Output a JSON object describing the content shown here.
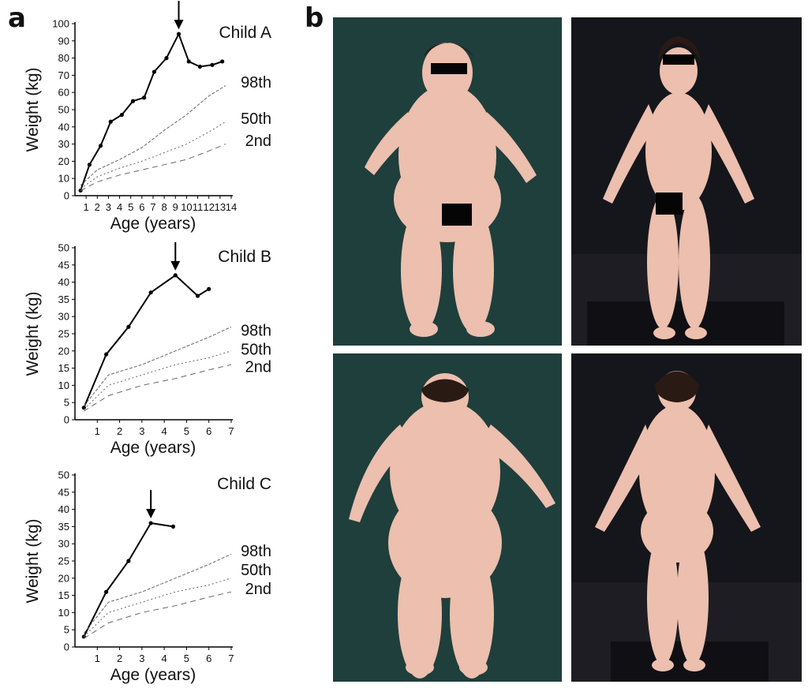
{
  "panel_labels": {
    "a": "a",
    "b": "b"
  },
  "colors": {
    "photo_background": "#1f3f3c",
    "photo_background_right": "#15161c",
    "skin": "#ecbfae",
    "hair": "#2a1a14",
    "censor": "#050505"
  },
  "chart_data": [
    {
      "type": "line",
      "title": "Child A",
      "xlabel": "Age (years)",
      "ylabel": "Weight (kg)",
      "xlim": [
        0,
        14
      ],
      "ylim": [
        0,
        100
      ],
      "xticks": [
        1,
        2,
        3,
        4,
        5,
        6,
        7,
        8,
        9,
        10,
        11,
        12,
        13,
        14
      ],
      "yticks": [
        0,
        10,
        20,
        30,
        40,
        50,
        60,
        70,
        80,
        90,
        100
      ],
      "arrow_at_x": 9.5,
      "series": [
        {
          "x": [
            0.5,
            1.3,
            2.3,
            3.2,
            4.2,
            5.2,
            6.2,
            7.1,
            8.2,
            9.3,
            10.2,
            11.2,
            12.3,
            13.2
          ],
          "y": [
            3,
            18,
            29,
            43,
            47,
            55,
            57,
            72,
            80,
            94,
            78,
            75,
            76,
            78
          ]
        },
        {
          "name": "98th",
          "label_y": 66,
          "x": [
            0.5,
            2,
            4,
            6,
            8,
            10,
            12,
            13.5
          ],
          "y": [
            6,
            15,
            21,
            28,
            38,
            47,
            58,
            64
          ]
        },
        {
          "name": "50th",
          "label_y": 45,
          "x": [
            0.5,
            2,
            4,
            6,
            8,
            10,
            12,
            13.5
          ],
          "y": [
            4,
            11,
            16,
            20,
            25,
            30,
            37,
            43
          ]
        },
        {
          "name": "2nd",
          "label_y": 32,
          "x": [
            0.5,
            2,
            4,
            6,
            8,
            10,
            12,
            13.5
          ],
          "y": [
            3,
            8,
            12,
            15,
            18,
            21,
            26,
            30
          ]
        }
      ]
    },
    {
      "type": "line",
      "title": "Child B",
      "xlabel": "Age (years)",
      "ylabel": "Weight (kg)",
      "xlim": [
        0,
        7
      ],
      "ylim": [
        0,
        50
      ],
      "xticks": [
        1,
        2,
        3,
        4,
        5,
        6,
        7
      ],
      "yticks": [
        0,
        5,
        10,
        15,
        20,
        25,
        30,
        35,
        40,
        45,
        50
      ],
      "arrow_at_x": 4.5,
      "series": [
        {
          "x": [
            0.4,
            1.4,
            2.4,
            3.4,
            4.5,
            5.5,
            6.0
          ],
          "y": [
            3.5,
            19,
            27,
            37,
            42,
            36,
            38
          ]
        },
        {
          "name": "98th",
          "label_y": 26,
          "x": [
            0.4,
            1.5,
            3,
            4.5,
            6,
            7
          ],
          "y": [
            4,
            13,
            16,
            20,
            24,
            27
          ]
        },
        {
          "name": "50th",
          "label_y": 20.5,
          "x": [
            0.4,
            1.5,
            3,
            4.5,
            6,
            7
          ],
          "y": [
            3,
            10,
            13,
            16,
            18,
            20
          ]
        },
        {
          "name": "2nd",
          "label_y": 15.5,
          "x": [
            0.4,
            1.5,
            3,
            4.5,
            6,
            7
          ],
          "y": [
            2.5,
            7,
            10,
            12,
            14.5,
            16
          ]
        }
      ]
    },
    {
      "type": "line",
      "title": "Child C",
      "xlabel": "Age (years)",
      "ylabel": "Weight (kg)",
      "xlim": [
        0,
        7
      ],
      "ylim": [
        0,
        50
      ],
      "xticks": [
        1,
        2,
        3,
        4,
        5,
        6,
        7
      ],
      "yticks": [
        0,
        5,
        10,
        15,
        20,
        25,
        30,
        35,
        40,
        45,
        50
      ],
      "arrow_at_x": 3.5,
      "series": [
        {
          "x": [
            0.4,
            1.4,
            2.4,
            3.4,
            4.4
          ],
          "y": [
            3,
            16,
            25,
            36,
            35
          ]
        },
        {
          "name": "98th",
          "label_y": 28,
          "x": [
            0.4,
            1.5,
            3,
            4.5,
            6,
            7
          ],
          "y": [
            4,
            13,
            16,
            20,
            24,
            27
          ]
        },
        {
          "name": "50th",
          "label_y": 22.5,
          "x": [
            0.4,
            1.5,
            3,
            4.5,
            6,
            7
          ],
          "y": [
            3,
            10,
            13,
            16,
            18,
            20
          ]
        },
        {
          "name": "2nd",
          "label_y": 17,
          "x": [
            0.4,
            1.5,
            3,
            4.5,
            6,
            7
          ],
          "y": [
            2.5,
            7,
            10,
            12,
            14.5,
            16
          ]
        }
      ]
    }
  ]
}
